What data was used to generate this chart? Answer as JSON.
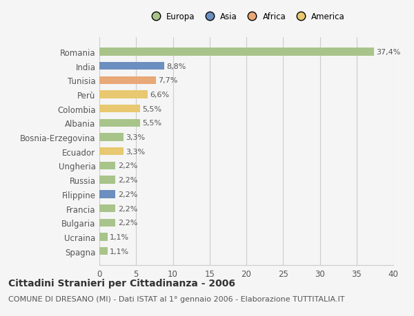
{
  "categories": [
    "Spagna",
    "Ucraina",
    "Bulgaria",
    "Francia",
    "Filippine",
    "Russia",
    "Ungheria",
    "Ecuador",
    "Bosnia-Erzegovina",
    "Albania",
    "Colombia",
    "Perù",
    "Tunisia",
    "India",
    "Romania"
  ],
  "values": [
    1.1,
    1.1,
    2.2,
    2.2,
    2.2,
    2.2,
    2.2,
    3.3,
    3.3,
    5.5,
    5.5,
    6.6,
    7.7,
    8.8,
    37.4
  ],
  "colors": [
    "#a8c48a",
    "#a8c48a",
    "#a8c48a",
    "#a8c48a",
    "#6b8fbe",
    "#a8c48a",
    "#a8c48a",
    "#e8c870",
    "#a8c48a",
    "#a8c48a",
    "#e8c870",
    "#e8c870",
    "#e8a878",
    "#6b8fbe",
    "#a8c48a"
  ],
  "labels": [
    "1,1%",
    "1,1%",
    "2,2%",
    "2,2%",
    "2,2%",
    "2,2%",
    "2,2%",
    "3,3%",
    "3,3%",
    "5,5%",
    "5,5%",
    "6,6%",
    "7,7%",
    "8,8%",
    "37,4%"
  ],
  "legend": [
    {
      "label": "Europa",
      "color": "#a8c48a"
    },
    {
      "label": "Asia",
      "color": "#6b8fbe"
    },
    {
      "label": "Africa",
      "color": "#e8a878"
    },
    {
      "label": "America",
      "color": "#e8c870"
    }
  ],
  "title": "Cittadini Stranieri per Cittadinanza - 2006",
  "subtitle": "COMUNE DI DRESANO (MI) - Dati ISTAT al 1° gennaio 2006 - Elaborazione TUTTITALIA.IT",
  "xlim": [
    0,
    40
  ],
  "xticks": [
    0,
    5,
    10,
    15,
    20,
    25,
    30,
    35,
    40
  ],
  "bar_height": 0.55,
  "background_color": "#f5f5f5",
  "plot_background_color": "#f5f5f5",
  "grid_color": "#cccccc",
  "text_color": "#555555",
  "title_fontsize": 10,
  "subtitle_fontsize": 8,
  "tick_fontsize": 8.5,
  "label_fontsize": 8
}
